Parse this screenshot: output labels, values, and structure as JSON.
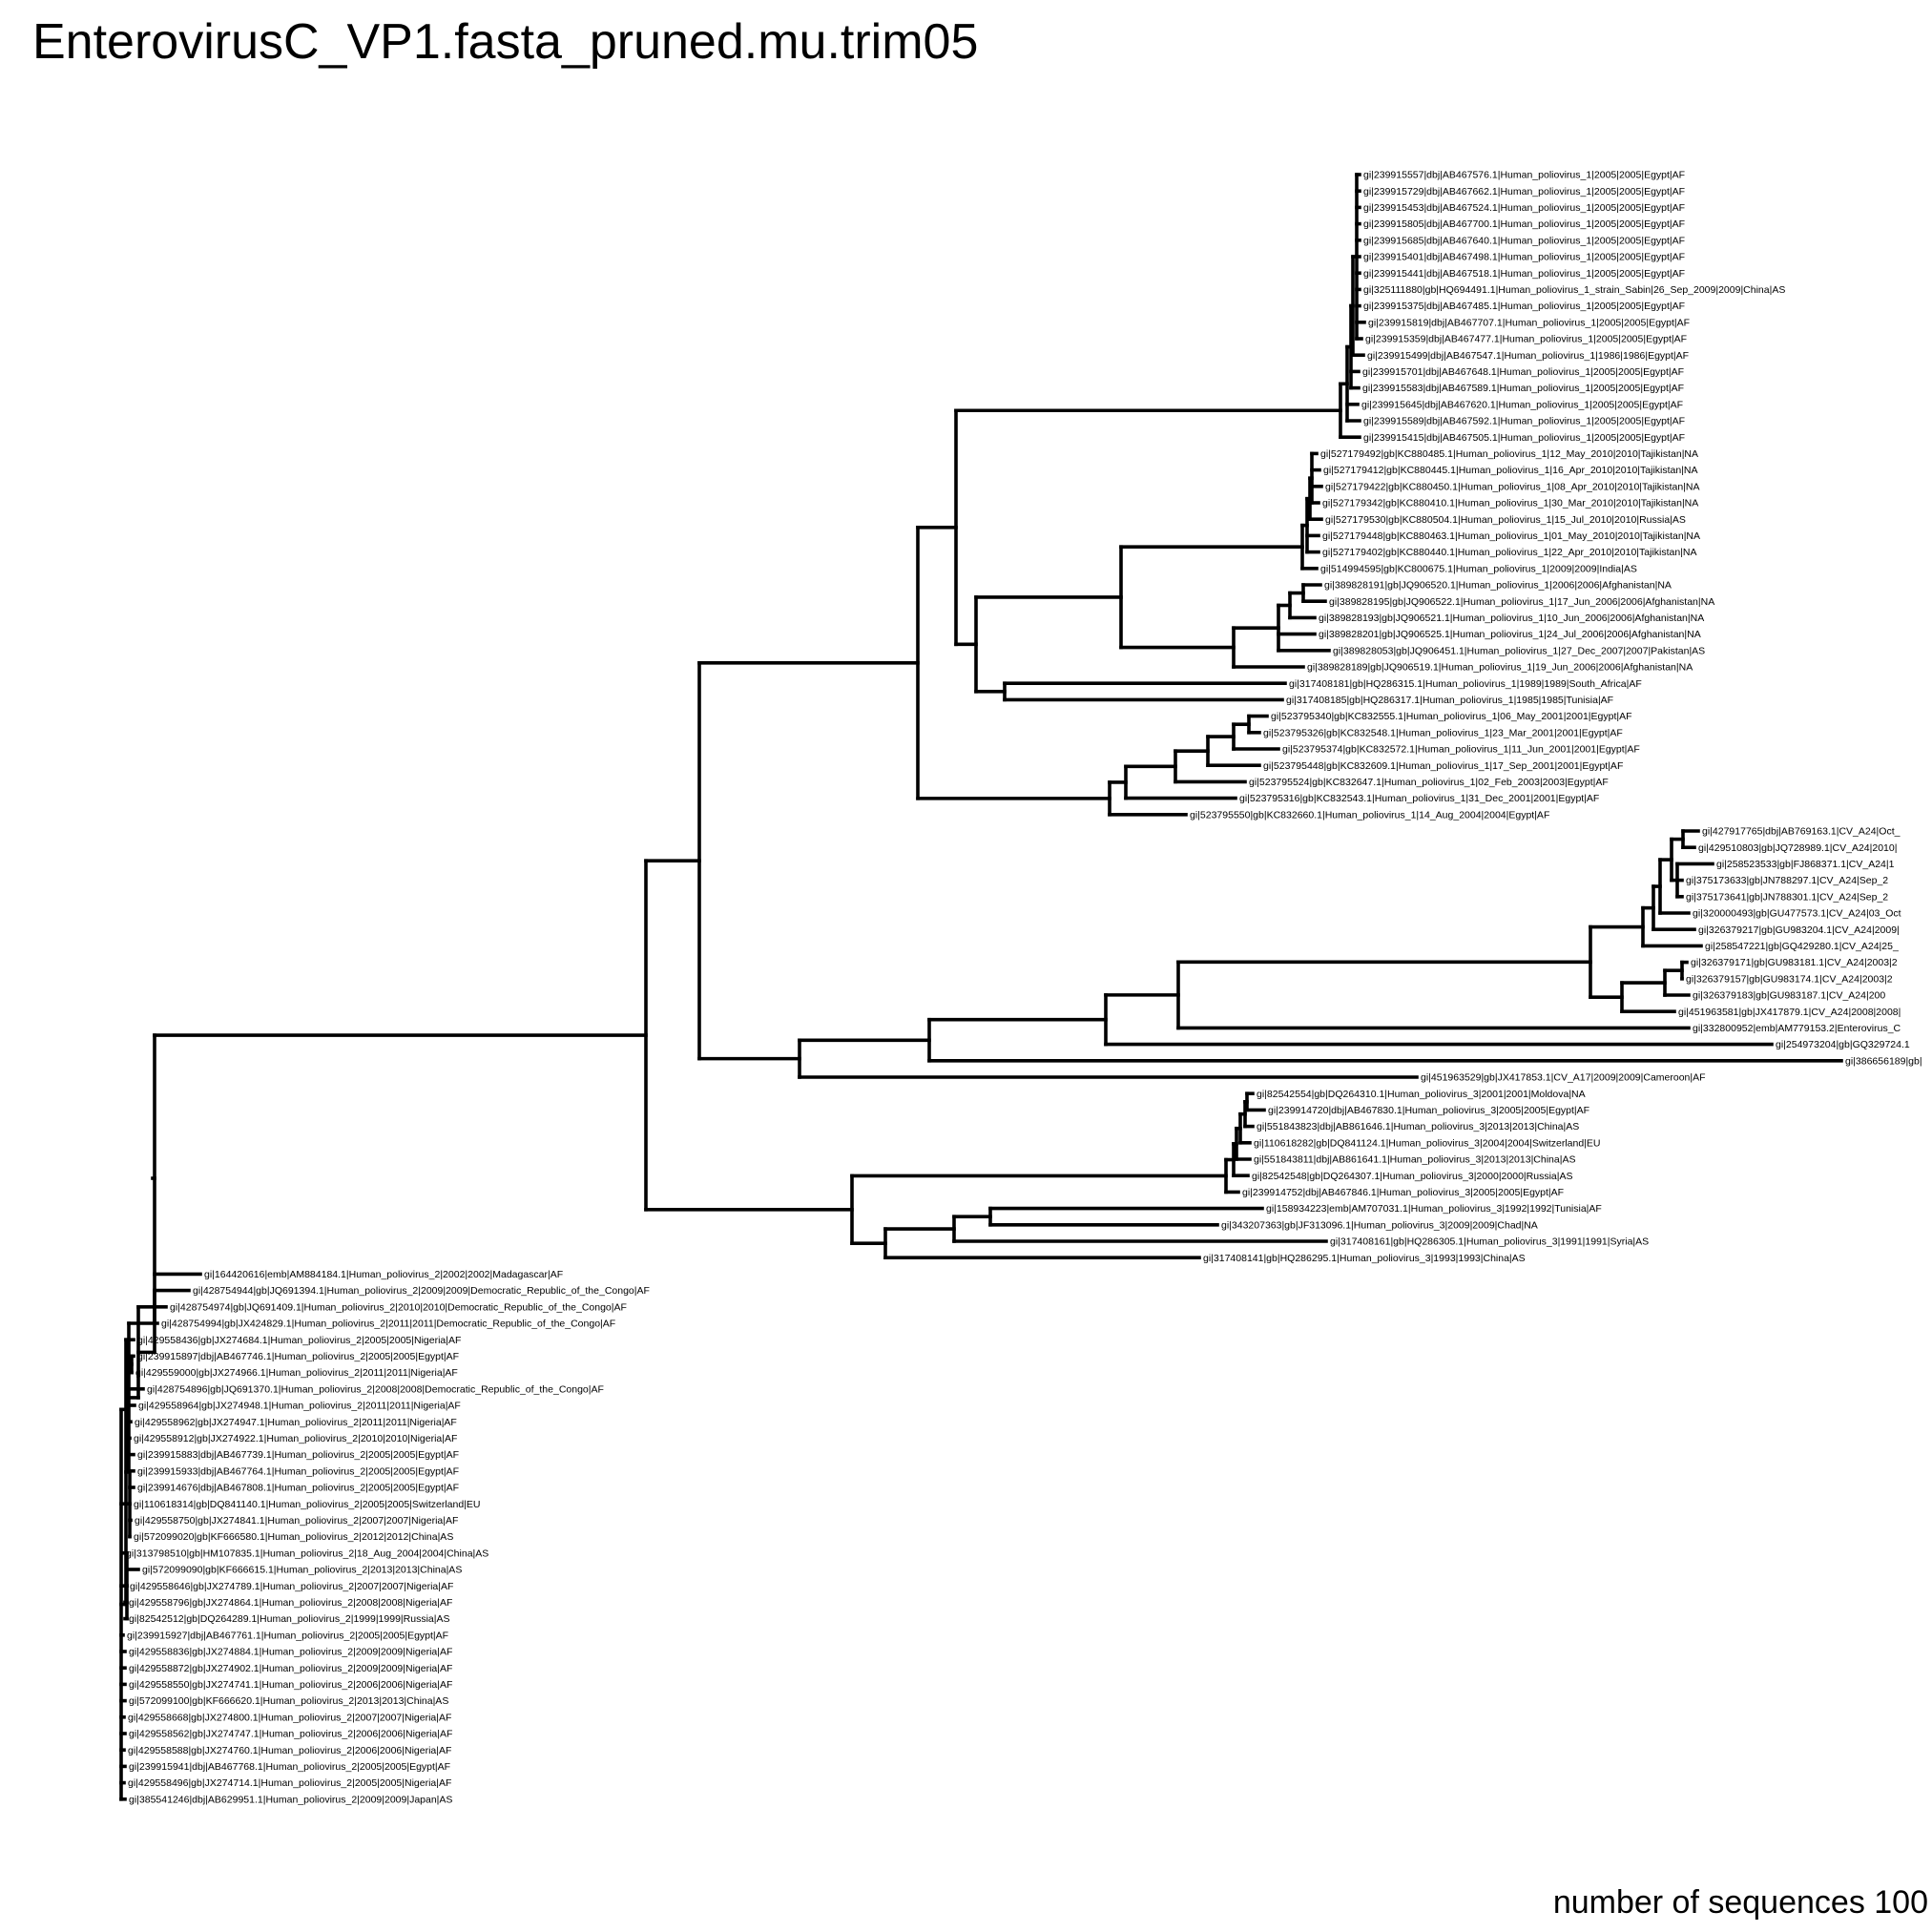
{
  "title": "EnterovirusC_VP1.fasta_pruned.mu.trim05",
  "footer": "number of sequences 100",
  "colors": {
    "branch": "#000000",
    "text": "#000000",
    "background": "#ffffff"
  },
  "tips": [
    "gi|239915557|dbj|AB467576.1|Human_poliovirus_1|2005|2005|Egypt|AF",
    "gi|239915729|dbj|AB467662.1|Human_poliovirus_1|2005|2005|Egypt|AF",
    "gi|239915453|dbj|AB467524.1|Human_poliovirus_1|2005|2005|Egypt|AF",
    "gi|239915805|dbj|AB467700.1|Human_poliovirus_1|2005|2005|Egypt|AF",
    "gi|239915685|dbj|AB467640.1|Human_poliovirus_1|2005|2005|Egypt|AF",
    "gi|239915401|dbj|AB467498.1|Human_poliovirus_1|2005|2005|Egypt|AF",
    "gi|239915441|dbj|AB467518.1|Human_poliovirus_1|2005|2005|Egypt|AF",
    "gi|325111880|gb|HQ694491.1|Human_poliovirus_1_strain_Sabin|26_Sep_2009|2009|China|AS",
    "gi|239915375|dbj|AB467485.1|Human_poliovirus_1|2005|2005|Egypt|AF",
    "gi|239915819|dbj|AB467707.1|Human_poliovirus_1|2005|2005|Egypt|AF",
    "gi|239915359|dbj|AB467477.1|Human_poliovirus_1|2005|2005|Egypt|AF",
    "gi|239915499|dbj|AB467547.1|Human_poliovirus_1|1986|1986|Egypt|AF",
    "gi|239915701|dbj|AB467648.1|Human_poliovirus_1|2005|2005|Egypt|AF",
    "gi|239915583|dbj|AB467589.1|Human_poliovirus_1|2005|2005|Egypt|AF",
    "gi|239915645|dbj|AB467620.1|Human_poliovirus_1|2005|2005|Egypt|AF",
    "gi|239915589|dbj|AB467592.1|Human_poliovirus_1|2005|2005|Egypt|AF",
    "gi|239915415|dbj|AB467505.1|Human_poliovirus_1|2005|2005|Egypt|AF",
    "gi|527179492|gb|KC880485.1|Human_poliovirus_1|12_May_2010|2010|Tajikistan|NA",
    "gi|527179412|gb|KC880445.1|Human_poliovirus_1|16_Apr_2010|2010|Tajikistan|NA",
    "gi|527179422|gb|KC880450.1|Human_poliovirus_1|08_Apr_2010|2010|Tajikistan|NA",
    "gi|527179342|gb|KC880410.1|Human_poliovirus_1|30_Mar_2010|2010|Tajikistan|NA",
    "gi|527179530|gb|KC880504.1|Human_poliovirus_1|15_Jul_2010|2010|Russia|AS",
    "gi|527179448|gb|KC880463.1|Human_poliovirus_1|01_May_2010|2010|Tajikistan|NA",
    "gi|527179402|gb|KC880440.1|Human_poliovirus_1|22_Apr_2010|2010|Tajikistan|NA",
    "gi|514994595|gb|KC800675.1|Human_poliovirus_1|2009|2009|India|AS",
    "gi|389828191|gb|JQ906520.1|Human_poliovirus_1|2006|2006|Afghanistan|NA",
    "gi|389828195|gb|JQ906522.1|Human_poliovirus_1|17_Jun_2006|2006|Afghanistan|NA",
    "gi|389828193|gb|JQ906521.1|Human_poliovirus_1|10_Jun_2006|2006|Afghanistan|NA",
    "gi|389828201|gb|JQ906525.1|Human_poliovirus_1|24_Jul_2006|2006|Afghanistan|NA",
    "gi|389828053|gb|JQ906451.1|Human_poliovirus_1|27_Dec_2007|2007|Pakistan|AS",
    "gi|389828189|gb|JQ906519.1|Human_poliovirus_1|19_Jun_2006|2006|Afghanistan|NA",
    "gi|317408181|gb|HQ286315.1|Human_poliovirus_1|1989|1989|South_Africa|AF",
    "gi|317408185|gb|HQ286317.1|Human_poliovirus_1|1985|1985|Tunisia|AF",
    "gi|523795340|gb|KC832555.1|Human_poliovirus_1|06_May_2001|2001|Egypt|AF",
    "gi|523795326|gb|KC832548.1|Human_poliovirus_1|23_Mar_2001|2001|Egypt|AF",
    "gi|523795374|gb|KC832572.1|Human_poliovirus_1|11_Jun_2001|2001|Egypt|AF",
    "gi|523795448|gb|KC832609.1|Human_poliovirus_1|17_Sep_2001|2001|Egypt|AF",
    "gi|523795524|gb|KC832647.1|Human_poliovirus_1|02_Feb_2003|2003|Egypt|AF",
    "gi|523795316|gb|KC832543.1|Human_poliovirus_1|31_Dec_2001|2001|Egypt|AF",
    "gi|523795550|gb|KC832660.1|Human_poliovirus_1|14_Aug_2004|2004|Egypt|AF",
    "gi|427917765|dbj|AB769163.1|CV_A24|Oct_",
    "gi|429510803|gb|JQ728989.1|CV_A24|2010|",
    "gi|258523533|gb|FJ868371.1|CV_A24|1",
    "gi|375173633|gb|JN788297.1|CV_A24|Sep_2",
    "gi|375173641|gb|JN788301.1|CV_A24|Sep_2",
    "gi|320000493|gb|GU477573.1|CV_A24|03_Oct",
    "gi|326379217|gb|GU983204.1|CV_A24|2009|",
    "gi|258547221|gb|GQ429280.1|CV_A24|25_",
    "gi|326379171|gb|GU983181.1|CV_A24|2003|2",
    "gi|326379157|gb|GU983174.1|CV_A24|2003|2",
    "gi|326379183|gb|GU983187.1|CV_A24|200",
    "gi|451963581|gb|JX417879.1|CV_A24|2008|2008|",
    "gi|332800952|emb|AM779153.2|Enterovirus_C",
    "gi|254973204|gb|GQ329724.1",
    "gi|386656189|gb|",
    "gi|451963529|gb|JX417853.1|CV_A17|2009|2009|Cameroon|AF",
    "gi|82542554|gb|DQ264310.1|Human_poliovirus_3|2001|2001|Moldova|NA",
    "gi|239914720|dbj|AB467830.1|Human_poliovirus_3|2005|2005|Egypt|AF",
    "gi|551843823|dbj|AB861646.1|Human_poliovirus_3|2013|2013|China|AS",
    "gi|110618282|gb|DQ841124.1|Human_poliovirus_3|2004|2004|Switzerland|EU",
    "gi|551843811|dbj|AB861641.1|Human_poliovirus_3|2013|2013|China|AS",
    "gi|82542548|gb|DQ264307.1|Human_poliovirus_3|2000|2000|Russia|AS",
    "gi|239914752|dbj|AB467846.1|Human_poliovirus_3|2005|2005|Egypt|AF",
    "gi|158934223|emb|AM707031.1|Human_poliovirus_3|1992|1992|Tunisia|AF",
    "gi|343207363|gb|JF313096.1|Human_poliovirus_3|2009|2009|Chad|NA",
    "gi|317408161|gb|HQ286305.1|Human_poliovirus_3|1991|1991|Syria|AS",
    "gi|317408141|gb|HQ286295.1|Human_poliovirus_3|1993|1993|China|AS",
    "gi|164420616|emb|AM884184.1|Human_poliovirus_2|2002|2002|Madagascar|AF",
    "gi|428754944|gb|JQ691394.1|Human_poliovirus_2|2009|2009|Democratic_Republic_of_the_Congo|AF",
    "gi|428754974|gb|JQ691409.1|Human_poliovirus_2|2010|2010|Democratic_Republic_of_the_Congo|AF",
    "gi|428754994|gb|JX424829.1|Human_poliovirus_2|2011|2011|Democratic_Republic_of_the_Congo|AF",
    "gi|429558436|gb|JX274684.1|Human_poliovirus_2|2005|2005|Nigeria|AF",
    "gi|239915897|dbj|AB467746.1|Human_poliovirus_2|2005|2005|Egypt|AF",
    "gi|429559000|gb|JX274966.1|Human_poliovirus_2|2011|2011|Nigeria|AF",
    "gi|428754896|gb|JQ691370.1|Human_poliovirus_2|2008|2008|Democratic_Republic_of_the_Congo|AF",
    "gi|429558964|gb|JX274948.1|Human_poliovirus_2|2011|2011|Nigeria|AF",
    "gi|429558962|gb|JX274947.1|Human_poliovirus_2|2011|2011|Nigeria|AF",
    "gi|429558912|gb|JX274922.1|Human_poliovirus_2|2010|2010|Nigeria|AF",
    "gi|239915883|dbj|AB467739.1|Human_poliovirus_2|2005|2005|Egypt|AF",
    "gi|239915933|dbj|AB467764.1|Human_poliovirus_2|2005|2005|Egypt|AF",
    "gi|239914676|dbj|AB467808.1|Human_poliovirus_2|2005|2005|Egypt|AF",
    "gi|110618314|gb|DQ841140.1|Human_poliovirus_2|2005|2005|Switzerland|EU",
    "gi|429558750|gb|JX274841.1|Human_poliovirus_2|2007|2007|Nigeria|AF",
    "gi|572099020|gb|KF666580.1|Human_poliovirus_2|2012|2012|China|AS",
    "gi|313798510|gb|HM107835.1|Human_poliovirus_2|18_Aug_2004|2004|China|AS",
    "gi|572099090|gb|KF666615.1|Human_poliovirus_2|2013|2013|China|AS",
    "gi|429558646|gb|JX274789.1|Human_poliovirus_2|2007|2007|Nigeria|AF",
    "gi|429558796|gb|JX274864.1|Human_poliovirus_2|2008|2008|Nigeria|AF",
    "gi|82542512|gb|DQ264289.1|Human_poliovirus_2|1999|1999|Russia|AS",
    "gi|239915927|dbj|AB467761.1|Human_poliovirus_2|2005|2005|Egypt|AF",
    "gi|429558836|gb|JX274884.1|Human_poliovirus_2|2009|2009|Nigeria|AF",
    "gi|429558872|gb|JX274902.1|Human_poliovirus_2|2009|2009|Nigeria|AF",
    "gi|429558550|gb|JX274741.1|Human_poliovirus_2|2006|2006|Nigeria|AF",
    "gi|572099100|gb|KF666620.1|Human_poliovirus_2|2013|2013|China|AS",
    "gi|429558668|gb|JX274800.1|Human_poliovirus_2|2007|2007|Nigeria|AF",
    "gi|429558562|gb|JX274747.1|Human_poliovirus_2|2006|2006|Nigeria|AF",
    "gi|429558588|gb|JX274760.1|Human_poliovirus_2|2006|2006|Nigeria|AF",
    "gi|239915941|dbj|AB467768.1|Human_poliovirus_2|2005|2005|Egypt|AF",
    "gi|429558496|gb|JX274714.1|Human_poliovirus_2|2005|2005|Nigeria|AF",
    "gi|385541246|dbj|AB629951.1|Human_poliovirus_2|2009|2009|Japan|AS"
  ]
}
